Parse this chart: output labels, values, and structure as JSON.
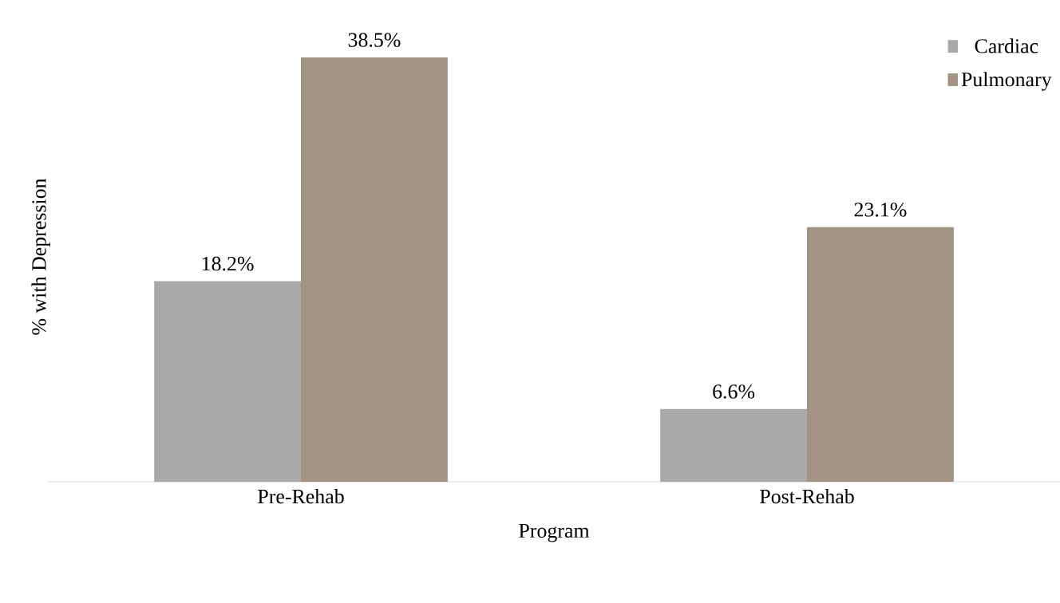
{
  "chart_data": {
    "type": "bar",
    "xlabel": "Program",
    "ylabel": "% with Depression",
    "categories": [
      "Pre-Rehab",
      "Post-Rehab"
    ],
    "series": [
      {
        "name": "Cardiac",
        "color": "#a9a9ab",
        "values": [
          18.2,
          6.6
        ],
        "value_labels": [
          "18.2%",
          "6.6%"
        ]
      },
      {
        "name": "Pulmonary",
        "color": "#a39383",
        "values": [
          38.5,
          23.1
        ],
        "value_labels": [
          "38.5%",
          "23.1%"
        ]
      }
    ],
    "legend": "top right"
  }
}
